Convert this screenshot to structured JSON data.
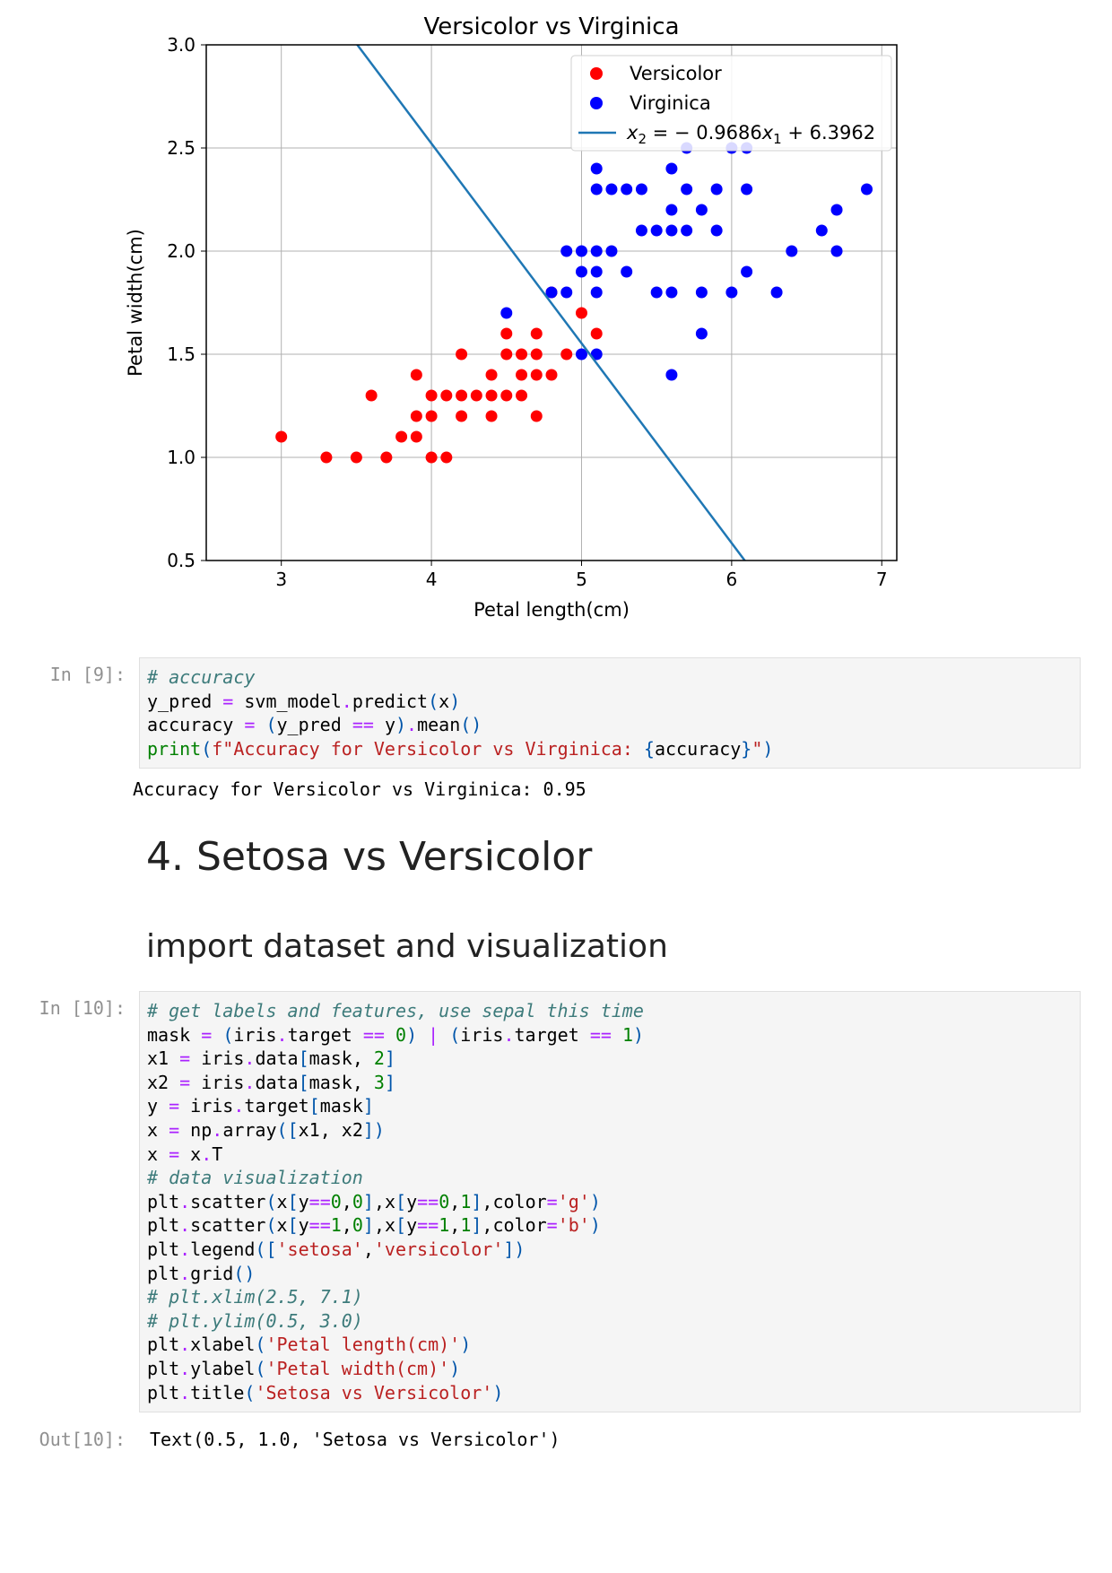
{
  "chart_data": {
    "type": "scatter",
    "title": "Versicolor vs Virginica",
    "xlabel": "Petal length(cm)",
    "ylabel": "Petal width(cm)",
    "xlim": [
      2.5,
      7.1
    ],
    "ylim": [
      0.5,
      3.0
    ],
    "xticks": [
      3,
      4,
      5,
      6,
      7
    ],
    "yticks": [
      0.5,
      1.0,
      1.5,
      2.0,
      2.5,
      3.0
    ],
    "grid": true,
    "legend_position": "top-right",
    "series": [
      {
        "name": "Versicolor",
        "color": "#ff0000",
        "points": [
          [
            3.0,
            1.1
          ],
          [
            3.3,
            1.0
          ],
          [
            3.5,
            1.0
          ],
          [
            3.7,
            1.0
          ],
          [
            3.6,
            1.3
          ],
          [
            3.8,
            1.1
          ],
          [
            3.9,
            1.1
          ],
          [
            3.9,
            1.2
          ],
          [
            3.9,
            1.4
          ],
          [
            4.0,
            1.0
          ],
          [
            4.0,
            1.2
          ],
          [
            4.0,
            1.3
          ],
          [
            4.1,
            1.0
          ],
          [
            4.1,
            1.3
          ],
          [
            4.2,
            1.2
          ],
          [
            4.2,
            1.3
          ],
          [
            4.2,
            1.5
          ],
          [
            4.3,
            1.3
          ],
          [
            4.4,
            1.2
          ],
          [
            4.4,
            1.3
          ],
          [
            4.4,
            1.4
          ],
          [
            4.5,
            1.3
          ],
          [
            4.5,
            1.5
          ],
          [
            4.5,
            1.6
          ],
          [
            4.6,
            1.3
          ],
          [
            4.6,
            1.4
          ],
          [
            4.6,
            1.5
          ],
          [
            4.7,
            1.2
          ],
          [
            4.7,
            1.4
          ],
          [
            4.7,
            1.5
          ],
          [
            4.7,
            1.6
          ],
          [
            4.8,
            1.4
          ],
          [
            4.8,
            1.8
          ],
          [
            4.9,
            1.5
          ],
          [
            5.0,
            1.7
          ],
          [
            5.1,
            1.6
          ]
        ]
      },
      {
        "name": "Virginica",
        "color": "#0000ff",
        "points": [
          [
            4.5,
            1.7
          ],
          [
            4.8,
            1.8
          ],
          [
            4.9,
            1.8
          ],
          [
            4.9,
            2.0
          ],
          [
            5.0,
            1.5
          ],
          [
            5.0,
            1.9
          ],
          [
            5.0,
            2.0
          ],
          [
            5.1,
            1.5
          ],
          [
            5.1,
            1.8
          ],
          [
            5.1,
            1.9
          ],
          [
            5.1,
            2.0
          ],
          [
            5.1,
            2.3
          ],
          [
            5.1,
            2.4
          ],
          [
            5.2,
            2.0
          ],
          [
            5.2,
            2.3
          ],
          [
            5.3,
            1.9
          ],
          [
            5.3,
            2.3
          ],
          [
            5.4,
            2.1
          ],
          [
            5.4,
            2.3
          ],
          [
            5.5,
            1.8
          ],
          [
            5.5,
            2.1
          ],
          [
            5.6,
            1.4
          ],
          [
            5.6,
            1.8
          ],
          [
            5.6,
            2.1
          ],
          [
            5.6,
            2.2
          ],
          [
            5.6,
            2.4
          ],
          [
            5.7,
            2.1
          ],
          [
            5.7,
            2.3
          ],
          [
            5.7,
            2.5
          ],
          [
            5.8,
            1.6
          ],
          [
            5.8,
            1.8
          ],
          [
            5.8,
            2.2
          ],
          [
            5.9,
            2.1
          ],
          [
            5.9,
            2.3
          ],
          [
            6.0,
            1.8
          ],
          [
            6.0,
            2.5
          ],
          [
            6.1,
            1.9
          ],
          [
            6.1,
            2.3
          ],
          [
            6.1,
            2.5
          ],
          [
            6.3,
            1.8
          ],
          [
            6.4,
            2.0
          ],
          [
            6.6,
            2.1
          ],
          [
            6.7,
            2.0
          ],
          [
            6.7,
            2.2
          ],
          [
            6.9,
            2.3
          ]
        ]
      }
    ],
    "line": {
      "name": "x_2 = -0.9686x_1 + 6.3962",
      "slope": -0.9686,
      "intercept": 6.3962,
      "color": "#1f77b4"
    },
    "legend_labels": [
      "Versicolor",
      "Virginica"
    ],
    "legend_line_label": {
      "lhs": "x",
      "lhs_sub": "2",
      "eq": " = − 0.9686",
      "var": "x",
      "var_sub": "1",
      "tail": " + 6.3962"
    }
  },
  "cells": [
    {
      "prompt": "In [9]:",
      "lines": [
        [
          [
            "c",
            "# accuracy"
          ]
        ],
        [
          [
            "n",
            "y_pred "
          ],
          [
            "o",
            "="
          ],
          [
            "n",
            " svm_model"
          ],
          [
            "o",
            "."
          ],
          [
            "n",
            "predict"
          ],
          [
            "p",
            "("
          ],
          [
            "n",
            "x"
          ],
          [
            "p",
            ")"
          ]
        ],
        [
          [
            "n",
            "accuracy "
          ],
          [
            "o",
            "="
          ],
          [
            "n",
            " "
          ],
          [
            "p",
            "("
          ],
          [
            "n",
            "y_pred "
          ],
          [
            "o",
            "=="
          ],
          [
            "n",
            " y"
          ],
          [
            "p",
            ")"
          ],
          [
            "o",
            "."
          ],
          [
            "n",
            "mean"
          ],
          [
            "p",
            "()"
          ]
        ],
        [
          [
            "b",
            "print"
          ],
          [
            "p",
            "("
          ],
          [
            "s",
            "f\"Accuracy for Versicolor vs Virginica: "
          ],
          [
            "p",
            "{"
          ],
          [
            "n",
            "accuracy"
          ],
          [
            "p",
            "}"
          ],
          [
            "s",
            "\""
          ],
          [
            "p",
            ")"
          ]
        ]
      ],
      "output": "Accuracy for Versicolor vs Virginica: 0.95"
    },
    {
      "prompt": "In [10]:",
      "lines": [
        [
          [
            "c",
            "# get labels and features, use sepal this time"
          ]
        ],
        [
          [
            "n",
            "mask "
          ],
          [
            "o",
            "="
          ],
          [
            "n",
            " "
          ],
          [
            "p",
            "("
          ],
          [
            "n",
            "iris"
          ],
          [
            "o",
            "."
          ],
          [
            "n",
            "target "
          ],
          [
            "o",
            "=="
          ],
          [
            "n",
            " "
          ],
          [
            "d",
            "0"
          ],
          [
            "p",
            ")"
          ],
          [
            "n",
            " "
          ],
          [
            "o",
            "|"
          ],
          [
            "n",
            " "
          ],
          [
            "p",
            "("
          ],
          [
            "n",
            "iris"
          ],
          [
            "o",
            "."
          ],
          [
            "n",
            "target "
          ],
          [
            "o",
            "=="
          ],
          [
            "n",
            " "
          ],
          [
            "d",
            "1"
          ],
          [
            "p",
            ")"
          ]
        ],
        [
          [
            "n",
            "x1 "
          ],
          [
            "o",
            "="
          ],
          [
            "n",
            " iris"
          ],
          [
            "o",
            "."
          ],
          [
            "n",
            "data"
          ],
          [
            "p",
            "["
          ],
          [
            "n",
            "mask, "
          ],
          [
            "d",
            "2"
          ],
          [
            "p",
            "]"
          ]
        ],
        [
          [
            "n",
            "x2 "
          ],
          [
            "o",
            "="
          ],
          [
            "n",
            " iris"
          ],
          [
            "o",
            "."
          ],
          [
            "n",
            "data"
          ],
          [
            "p",
            "["
          ],
          [
            "n",
            "mask, "
          ],
          [
            "d",
            "3"
          ],
          [
            "p",
            "]"
          ]
        ],
        [
          [
            "n",
            "y "
          ],
          [
            "o",
            "="
          ],
          [
            "n",
            " iris"
          ],
          [
            "o",
            "."
          ],
          [
            "n",
            "target"
          ],
          [
            "p",
            "["
          ],
          [
            "n",
            "mask"
          ],
          [
            "p",
            "]"
          ]
        ],
        [
          [
            "n",
            "x "
          ],
          [
            "o",
            "="
          ],
          [
            "n",
            " np"
          ],
          [
            "o",
            "."
          ],
          [
            "n",
            "array"
          ],
          [
            "p",
            "(["
          ],
          [
            "n",
            "x1, x2"
          ],
          [
            "p",
            "])"
          ]
        ],
        [
          [
            "n",
            "x "
          ],
          [
            "o",
            "="
          ],
          [
            "n",
            " x"
          ],
          [
            "o",
            "."
          ],
          [
            "n",
            "T"
          ]
        ],
        [
          [
            "c",
            "# data visualization"
          ]
        ],
        [
          [
            "n",
            "plt"
          ],
          [
            "o",
            "."
          ],
          [
            "n",
            "scatter"
          ],
          [
            "p",
            "("
          ],
          [
            "n",
            "x"
          ],
          [
            "p",
            "["
          ],
          [
            "n",
            "y"
          ],
          [
            "o",
            "=="
          ],
          [
            "d",
            "0"
          ],
          [
            "n",
            ","
          ],
          [
            "d",
            "0"
          ],
          [
            "p",
            "]"
          ],
          [
            "n",
            ",x"
          ],
          [
            "p",
            "["
          ],
          [
            "n",
            "y"
          ],
          [
            "o",
            "=="
          ],
          [
            "d",
            "0"
          ],
          [
            "n",
            ","
          ],
          [
            "d",
            "1"
          ],
          [
            "p",
            "]"
          ],
          [
            "n",
            ",color"
          ],
          [
            "o",
            "="
          ],
          [
            "s",
            "'g'"
          ],
          [
            "p",
            ")"
          ]
        ],
        [
          [
            "n",
            "plt"
          ],
          [
            "o",
            "."
          ],
          [
            "n",
            "scatter"
          ],
          [
            "p",
            "("
          ],
          [
            "n",
            "x"
          ],
          [
            "p",
            "["
          ],
          [
            "n",
            "y"
          ],
          [
            "o",
            "=="
          ],
          [
            "d",
            "1"
          ],
          [
            "n",
            ","
          ],
          [
            "d",
            "0"
          ],
          [
            "p",
            "]"
          ],
          [
            "n",
            ",x"
          ],
          [
            "p",
            "["
          ],
          [
            "n",
            "y"
          ],
          [
            "o",
            "=="
          ],
          [
            "d",
            "1"
          ],
          [
            "n",
            ","
          ],
          [
            "d",
            "1"
          ],
          [
            "p",
            "]"
          ],
          [
            "n",
            ",color"
          ],
          [
            "o",
            "="
          ],
          [
            "s",
            "'b'"
          ],
          [
            "p",
            ")"
          ]
        ],
        [
          [
            "n",
            "plt"
          ],
          [
            "o",
            "."
          ],
          [
            "n",
            "legend"
          ],
          [
            "p",
            "(["
          ],
          [
            "s",
            "'setosa'"
          ],
          [
            "n",
            ","
          ],
          [
            "s",
            "'versicolor'"
          ],
          [
            "p",
            "])"
          ]
        ],
        [
          [
            "n",
            "plt"
          ],
          [
            "o",
            "."
          ],
          [
            "n",
            "grid"
          ],
          [
            "p",
            "()"
          ]
        ],
        [
          [
            "c",
            "# plt.xlim(2.5, 7.1)"
          ]
        ],
        [
          [
            "c",
            "# plt.ylim(0.5, 3.0)"
          ]
        ],
        [
          [
            "n",
            "plt"
          ],
          [
            "o",
            "."
          ],
          [
            "n",
            "xlabel"
          ],
          [
            "p",
            "("
          ],
          [
            "s",
            "'Petal length(cm)'"
          ],
          [
            "p",
            ")"
          ]
        ],
        [
          [
            "n",
            "plt"
          ],
          [
            "o",
            "."
          ],
          [
            "n",
            "ylabel"
          ],
          [
            "p",
            "("
          ],
          [
            "s",
            "'Petal width(cm)'"
          ],
          [
            "p",
            ")"
          ]
        ],
        [
          [
            "n",
            "plt"
          ],
          [
            "o",
            "."
          ],
          [
            "n",
            "title"
          ],
          [
            "p",
            "("
          ],
          [
            "s",
            "'Setosa vs Versicolor'"
          ],
          [
            "p",
            ")"
          ]
        ]
      ],
      "out_prompt": "Out[10]:",
      "output": "Text(0.5, 1.0, 'Setosa vs Versicolor')"
    }
  ],
  "markdown": {
    "h1": "4. Setosa vs Versicolor",
    "h2": "import dataset and visualization"
  }
}
